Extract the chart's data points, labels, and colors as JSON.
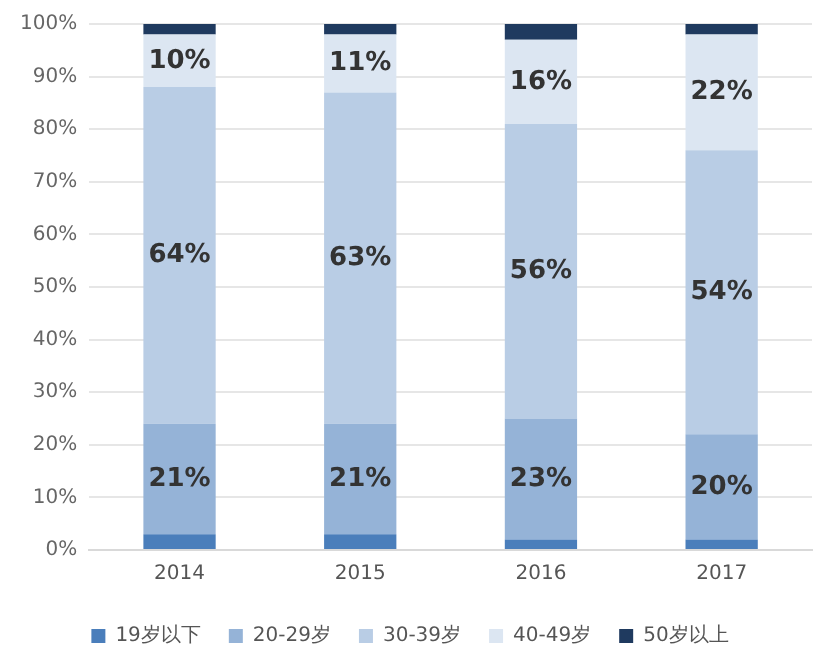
{
  "chart_data": {
    "type": "bar",
    "stacked": true,
    "categories": [
      "2014",
      "2015",
      "2016",
      "2017"
    ],
    "series": [
      {
        "name": "19岁以下",
        "color": "#4a7ebb",
        "values": [
          3,
          3,
          2,
          2
        ]
      },
      {
        "name": "20-29岁",
        "color": "#95b3d7",
        "values": [
          21,
          21,
          23,
          20
        ],
        "value_labels": [
          "21%",
          "21%",
          "23%",
          "20%"
        ]
      },
      {
        "name": "30-39岁",
        "color": "#b9cde5",
        "values": [
          64,
          63,
          56,
          54
        ],
        "value_labels": [
          "64%",
          "63%",
          "56%",
          "54%"
        ]
      },
      {
        "name": "40-49岁",
        "color": "#dce6f2",
        "values": [
          10,
          11,
          16,
          22
        ],
        "value_labels": [
          "10%",
          "11%",
          "16%",
          "22%"
        ]
      },
      {
        "name": "50岁以上",
        "color": "#1f3a5f",
        "values": [
          2,
          2,
          3,
          2
        ]
      }
    ],
    "ylim": [
      0,
      100
    ],
    "yticks": [
      {
        "value": 0,
        "label": "0%"
      },
      {
        "value": 10,
        "label": "10%"
      },
      {
        "value": 20,
        "label": "20%"
      },
      {
        "value": 30,
        "label": "30%"
      },
      {
        "value": 40,
        "label": "40%"
      },
      {
        "value": 50,
        "label": "50%"
      },
      {
        "value": 60,
        "label": "60%"
      },
      {
        "value": 70,
        "label": "70%"
      },
      {
        "value": 80,
        "label": "80%"
      },
      {
        "value": 90,
        "label": "90%"
      },
      {
        "value": 100,
        "label": "100%"
      }
    ],
    "grid": "y",
    "legend": "bottom"
  }
}
